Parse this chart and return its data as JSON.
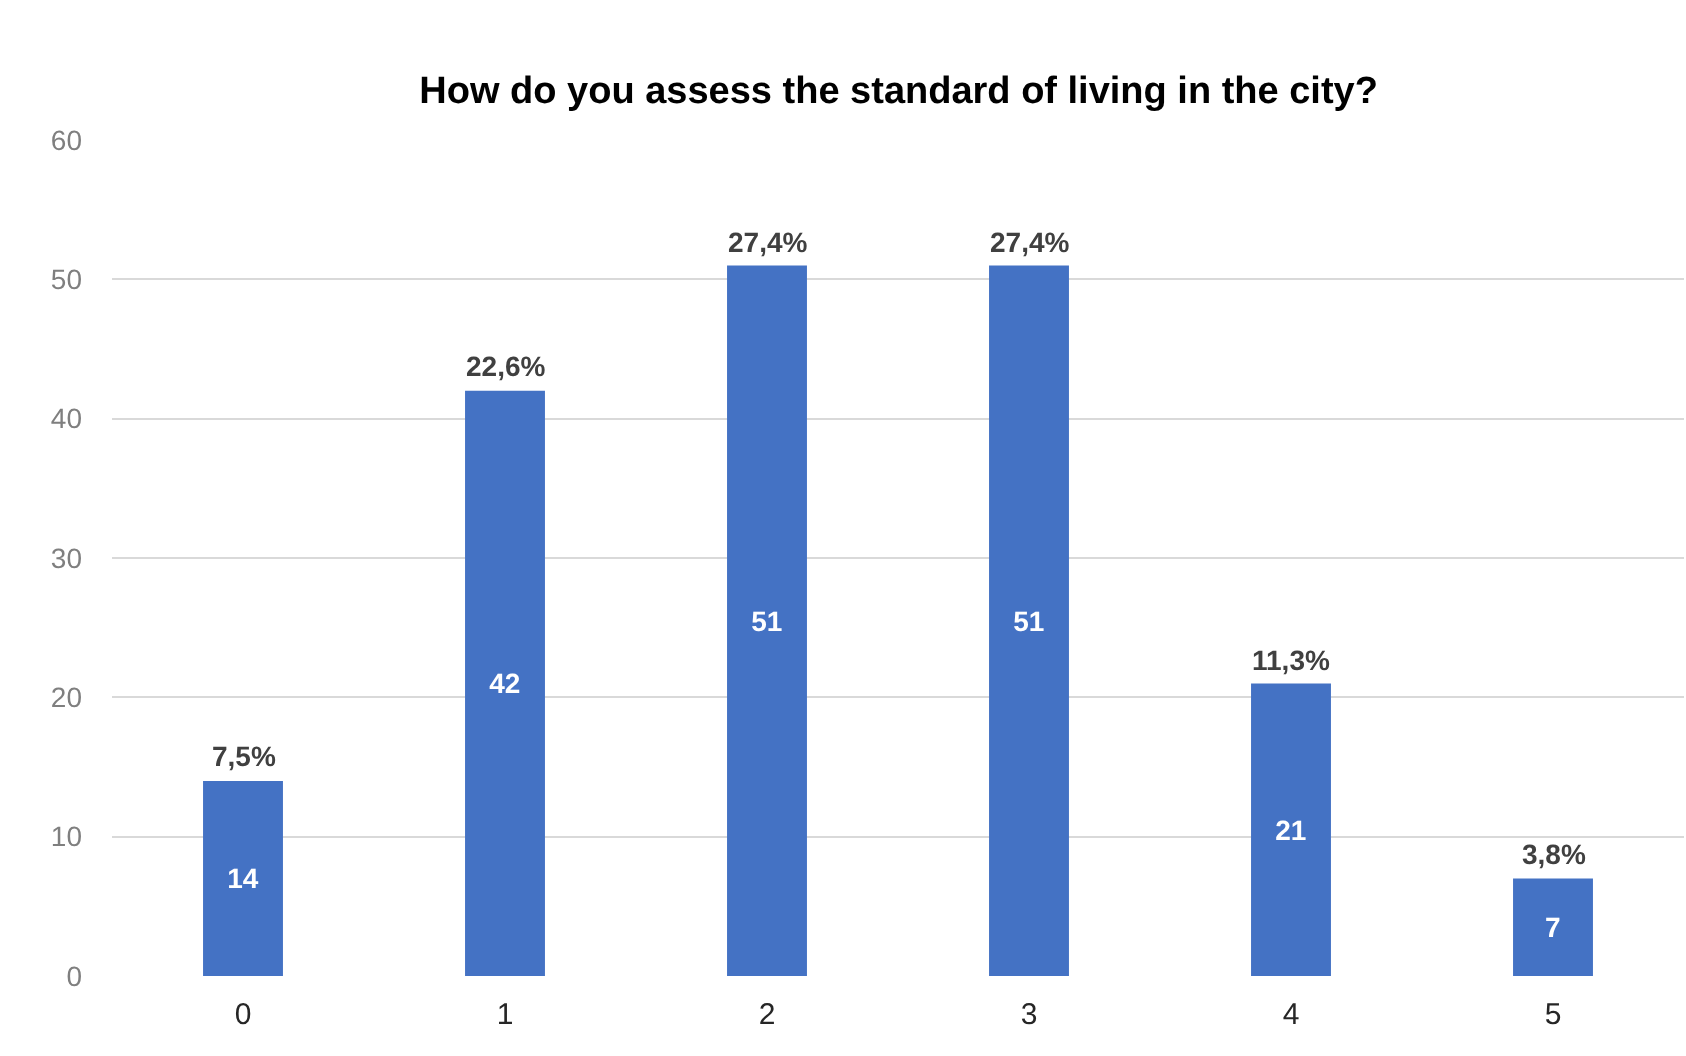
{
  "chart_data": {
    "type": "bar",
    "title": "How do you assess the standard of living in the city?",
    "categories": [
      "0",
      "1",
      "2",
      "3",
      "4",
      "5"
    ],
    "values": [
      14,
      42,
      51,
      51,
      21,
      7
    ],
    "data_labels": true,
    "annotations": [
      {
        "text": "7,5%",
        "x": "0",
        "y": 14
      },
      {
        "text": "22,6%",
        "x": "1",
        "y": 42
      },
      {
        "text": "27,4%",
        "x": "2",
        "y": 51
      },
      {
        "text": "27,4%",
        "x": "3",
        "y": 51
      },
      {
        "text": "11,3%",
        "x": "4",
        "y": 21
      },
      {
        "text": "3,8%",
        "x": "5",
        "y": 7
      }
    ],
    "color": "#4472c4",
    "ylim": [
      0,
      60
    ],
    "yticks": [
      0,
      10,
      20,
      30,
      40,
      50,
      60
    ],
    "grid": "y"
  }
}
